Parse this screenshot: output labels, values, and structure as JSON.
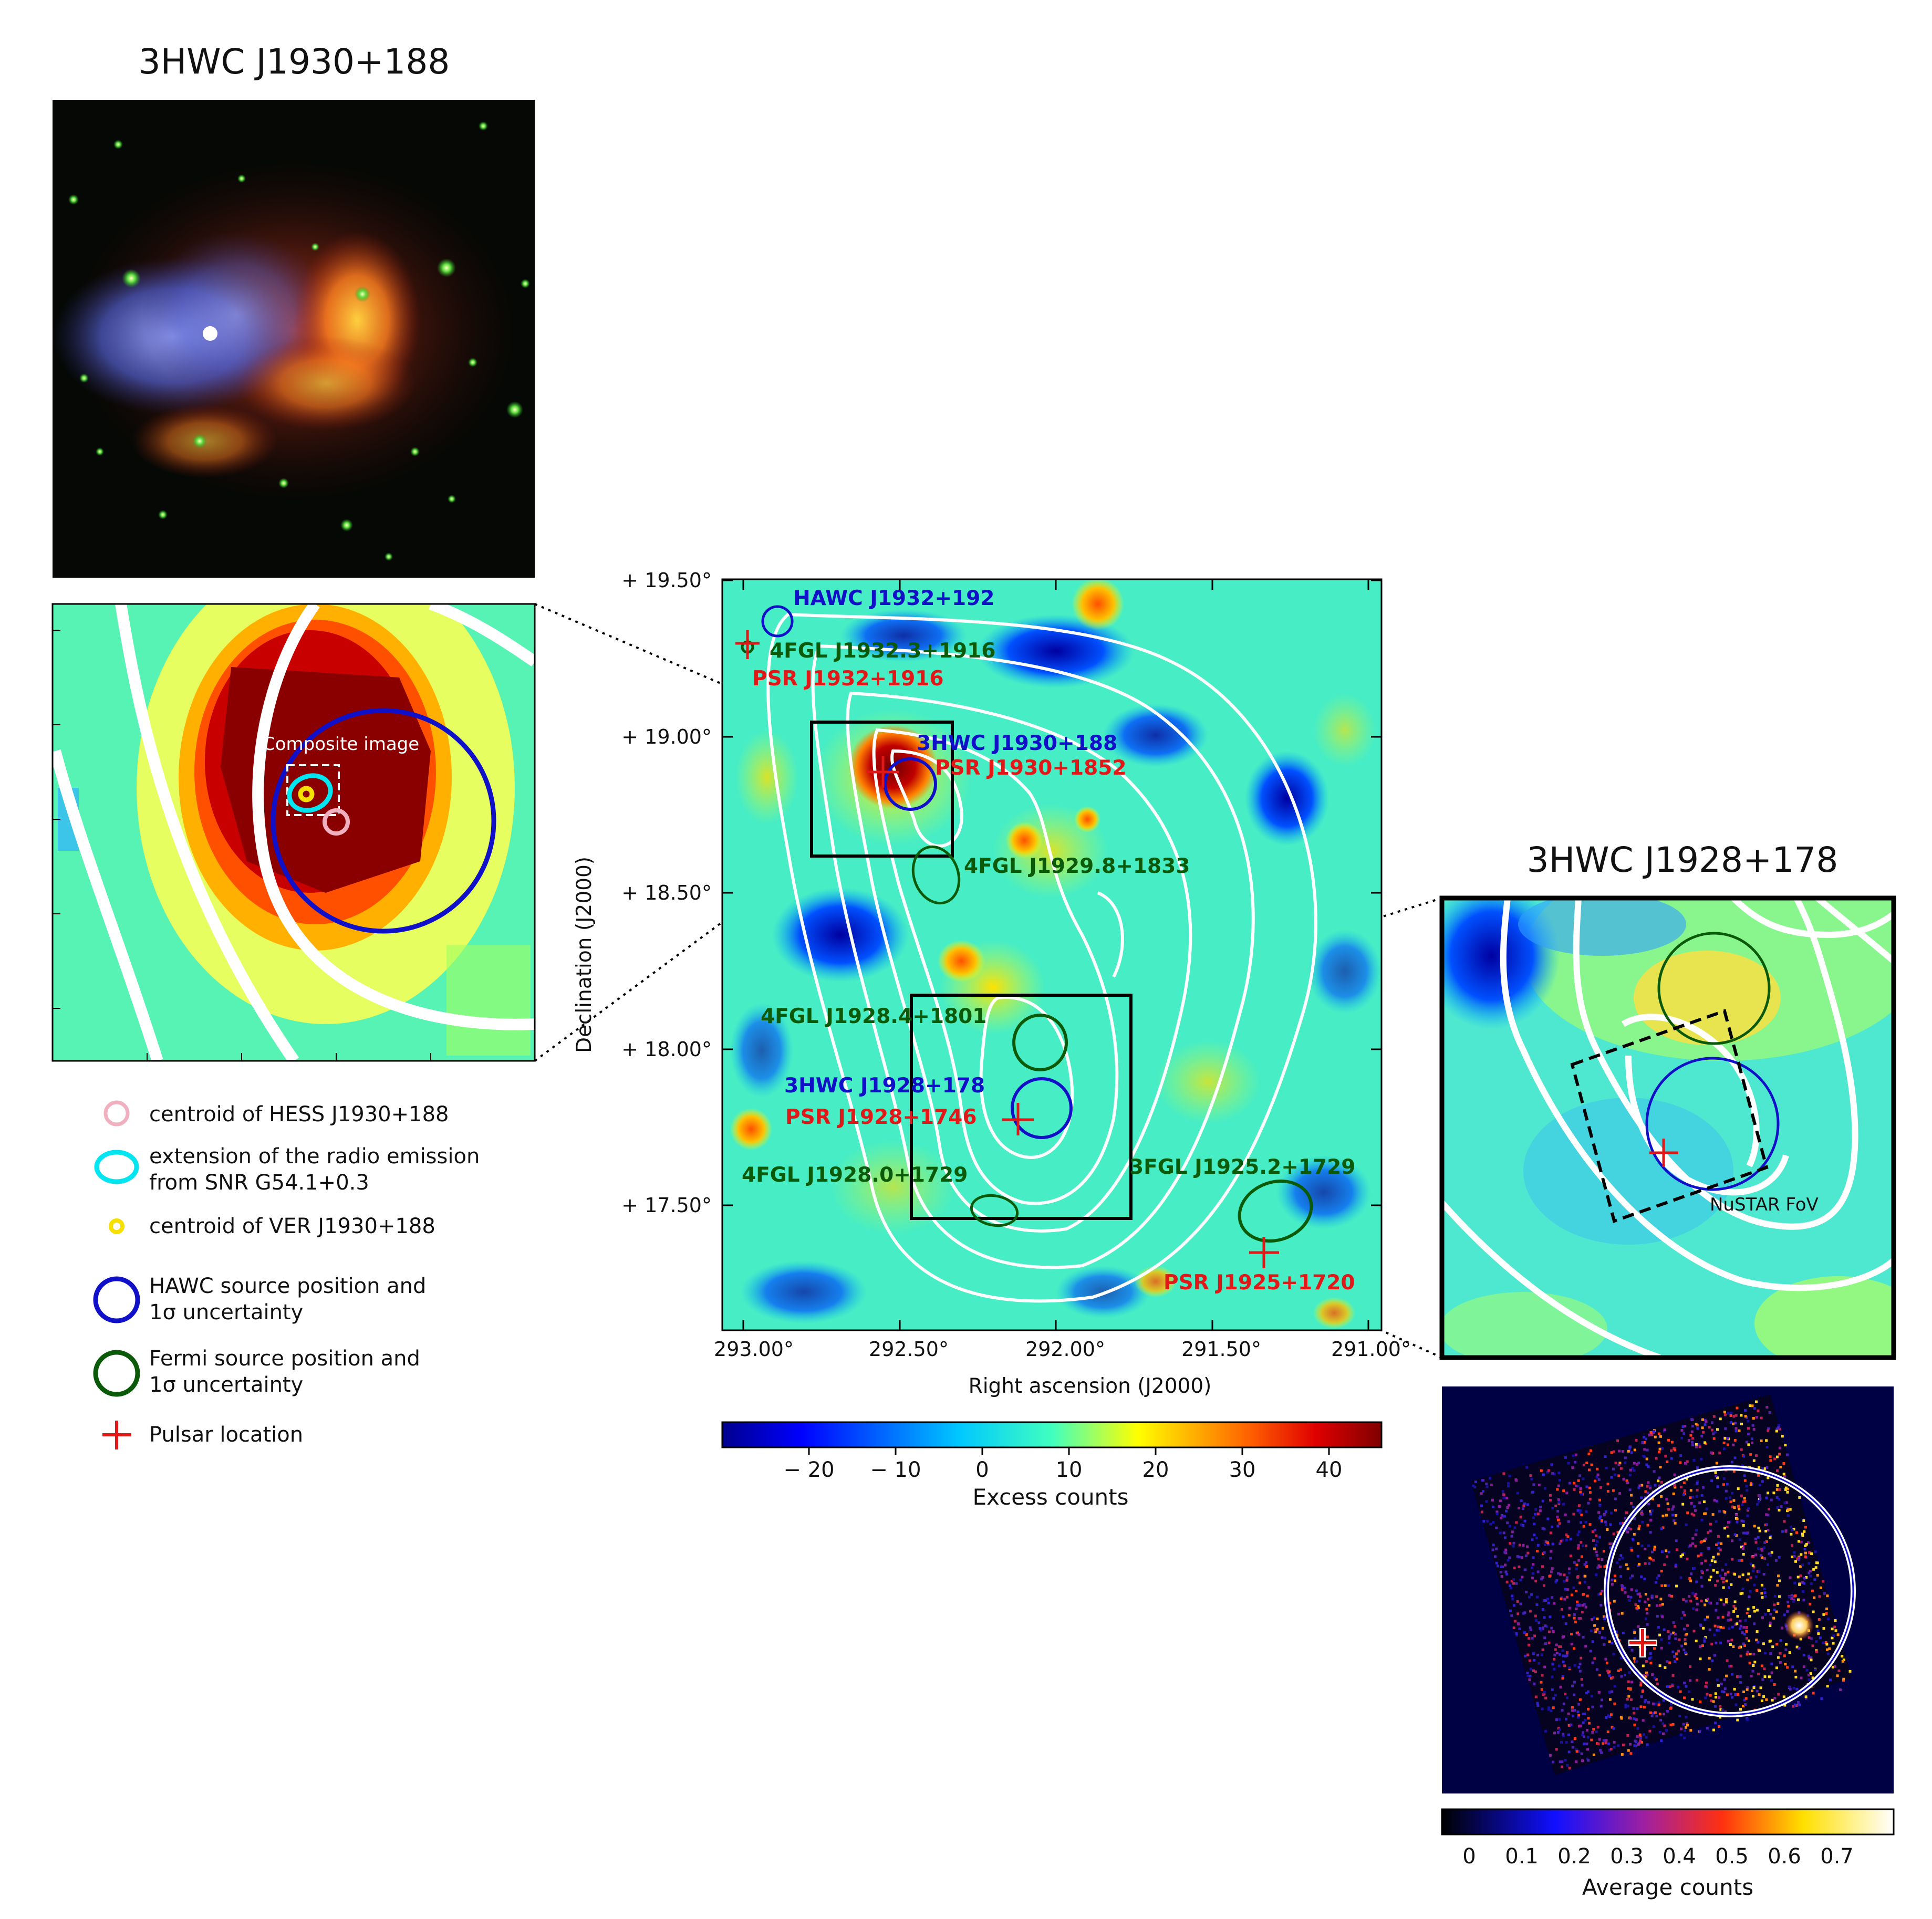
{
  "titles": {
    "left_top": "3HWC J1930+188",
    "right": "3HWC J1928+178"
  },
  "left_zoom": {
    "composite_label": "Composite image"
  },
  "legend": [
    {
      "text": [
        "centroid of HESS J1930+188"
      ]
    },
    {
      "text": [
        "extension of the radio emission",
        "from SNR G54.1+0.3"
      ]
    },
    {
      "text": [
        "centroid of VER J1930+188"
      ]
    },
    {
      "text": [
        "HAWC source position and",
        "1σ uncertainty"
      ]
    },
    {
      "text": [
        "Fermi source position and",
        "1σ uncertainty"
      ]
    },
    {
      "text": [
        "Pulsar location"
      ]
    }
  ],
  "main_map": {
    "xlabel": "Right ascension (J2000)",
    "ylabel": "Declination (J2000)",
    "xticks": [
      "293.00°",
      "292.50°",
      "292.00°",
      "291.50°",
      "291.00°"
    ],
    "yticks": [
      "+ 19.50°",
      "+ 19.00°",
      "+ 18.50°",
      "+ 18.00°",
      "+ 17.50°"
    ],
    "labels": {
      "hawc_j1932": "HAWC J1932+192",
      "fgl_j1932": "4FGL J1932.3+1916",
      "psr_j1932": "PSR J1932+1916",
      "hwc_j1930": "3HWC J1930+188",
      "psr_j1930": "PSR J1930+1852",
      "fgl_j1929": "4FGL J1929.8+1833",
      "fgl_j1928_4": "4FGL J1928.4+1801",
      "hwc_j1928": "3HWC J1928+178",
      "psr_j1928": "PSR J1928+1746",
      "fgl_j1928_0": "4FGL J1928.0+1729",
      "fgl3_j1925": "3FGL J1925.2+1729",
      "psr_j1925": "PSR J1925+1720"
    }
  },
  "colorbar_main": {
    "ticks": [
      "− 20",
      "− 10",
      "0",
      "10",
      "20",
      "30",
      "40"
    ],
    "label": "Excess counts"
  },
  "right_zoom": {
    "fov_label": "NuSTAR FoV"
  },
  "colorbar_right": {
    "ticks": [
      "0",
      "0.1",
      "0.2",
      "0.3",
      "0.4",
      "0.5",
      "0.6",
      "0.7"
    ],
    "label": "Average counts"
  },
  "colors": {
    "hawc": "#1010c8",
    "fermi": "#0a5a0a",
    "pulsar": "#e01818",
    "hess": "#f0b0c0",
    "radio": "#00e5f0",
    "veritas": "#f5e000",
    "contour": "#ffffff"
  }
}
